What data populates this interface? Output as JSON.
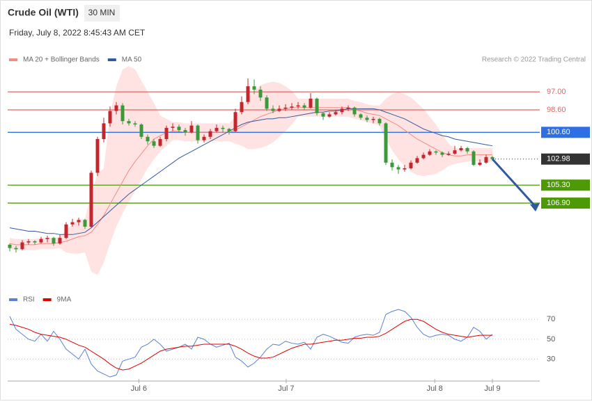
{
  "header": {
    "title": "Crude Oil (WTI)",
    "interval": "30 MIN",
    "timestamp": "Friday, July 8, 2022 8:45:43 AM CET",
    "credit": "Research © 2022 Trading Central"
  },
  "chart_data": [
    {
      "type": "candlestick",
      "up_color": "#3a9a3a",
      "down_color": "#c3262c",
      "band_color": "#ffdcdc",
      "ylim": [
        114.2,
        94.7
      ],
      "xlim": [
        0,
        77
      ],
      "xticks": [
        {
          "value": 20.6,
          "label": "Jul 6"
        },
        {
          "value": 44.1,
          "label": "Jul 7"
        },
        {
          "value": 67.8,
          "label": "Jul 8"
        },
        {
          "value": 77,
          "label": "Jul 9"
        }
      ],
      "candles": [
        [
          110.6,
          111.2,
          110.5,
          110.9
        ],
        [
          110.9,
          111.3,
          110.7,
          111.0
        ],
        [
          111.0,
          111.1,
          110.2,
          110.4
        ],
        [
          110.4,
          110.6,
          110.1,
          110.3
        ],
        [
          110.3,
          110.6,
          110.2,
          110.4
        ],
        [
          110.4,
          110.5,
          109.9,
          110.1
        ],
        [
          110.1,
          110.4,
          109.8,
          110.0
        ],
        [
          110.0,
          110.7,
          109.9,
          110.5
        ],
        [
          110.5,
          110.6,
          109.7,
          110.0
        ],
        [
          110.0,
          110.1,
          108.6,
          108.8
        ],
        [
          108.8,
          109.0,
          108.3,
          108.6
        ],
        [
          108.6,
          108.9,
          108.2,
          108.4
        ],
        [
          108.4,
          109.2,
          108.3,
          109.0
        ],
        [
          109.0,
          109.1,
          104.0,
          104.2
        ],
        [
          104.2,
          104.5,
          101.0,
          101.2
        ],
        [
          101.2,
          101.5,
          99.3,
          99.8
        ],
        [
          99.8,
          100.1,
          98.3,
          98.7
        ],
        [
          98.7,
          99.0,
          97.9,
          98.2
        ],
        [
          98.2,
          99.9,
          98.0,
          99.6
        ],
        [
          99.6,
          100.0,
          99.4,
          99.8
        ],
        [
          99.8,
          100.1,
          99.6,
          99.9
        ],
        [
          99.9,
          101.2,
          99.8,
          101.0
        ],
        [
          101.0,
          101.7,
          100.8,
          101.4
        ],
        [
          101.4,
          102.0,
          101.2,
          101.8
        ],
        [
          101.8,
          101.9,
          101.0,
          101.2
        ],
        [
          101.2,
          101.4,
          100.0,
          100.2
        ],
        [
          100.2,
          100.5,
          99.8,
          100.1
        ],
        [
          100.1,
          100.6,
          99.9,
          100.4
        ],
        [
          100.4,
          100.9,
          100.2,
          100.6
        ],
        [
          100.6,
          100.7,
          99.6,
          100.0
        ],
        [
          100.0,
          101.6,
          99.9,
          101.3
        ],
        [
          101.3,
          101.5,
          100.8,
          101.0
        ],
        [
          101.0,
          101.2,
          100.3,
          100.5
        ],
        [
          100.5,
          100.6,
          99.9,
          100.2
        ],
        [
          100.2,
          100.6,
          100.0,
          100.3
        ],
        [
          100.3,
          100.8,
          100.2,
          100.5
        ],
        [
          100.5,
          100.6,
          98.5,
          98.8
        ],
        [
          98.8,
          99.0,
          97.4,
          97.9
        ],
        [
          97.9,
          98.1,
          95.8,
          96.5
        ],
        [
          96.5,
          97.2,
          95.9,
          96.8
        ],
        [
          96.8,
          97.8,
          96.5,
          97.5
        ],
        [
          97.5,
          98.7,
          97.3,
          98.5
        ],
        [
          98.5,
          98.9,
          98.2,
          98.7
        ],
        [
          98.7,
          98.8,
          98.2,
          98.5
        ],
        [
          98.5,
          98.7,
          98.1,
          98.4
        ],
        [
          98.4,
          98.6,
          98.0,
          98.3
        ],
        [
          98.3,
          98.5,
          97.9,
          98.2
        ],
        [
          98.2,
          98.6,
          98.0,
          98.4
        ],
        [
          98.4,
          98.5,
          97.1,
          97.6
        ],
        [
          97.6,
          99.1,
          97.5,
          98.9
        ],
        [
          98.9,
          99.5,
          98.8,
          99.2
        ],
        [
          99.2,
          99.3,
          98.8,
          99.0
        ],
        [
          99.0,
          99.1,
          98.6,
          98.8
        ],
        [
          98.8,
          99.0,
          98.3,
          98.5
        ],
        [
          98.5,
          98.7,
          98.2,
          98.4
        ],
        [
          98.4,
          99.2,
          98.3,
          99.0
        ],
        [
          99.0,
          99.5,
          98.9,
          99.3
        ],
        [
          99.3,
          99.7,
          99.1,
          99.5
        ],
        [
          99.5,
          99.8,
          99.2,
          99.4
        ],
        [
          99.4,
          100.0,
          99.3,
          99.8
        ],
        [
          99.8,
          103.5,
          99.7,
          103.3
        ],
        [
          103.3,
          104.0,
          103.0,
          103.7
        ],
        [
          103.7,
          104.3,
          103.5,
          103.9
        ],
        [
          103.9,
          104.1,
          103.5,
          103.8
        ],
        [
          103.8,
          103.9,
          103.1,
          103.3
        ],
        [
          103.3,
          103.4,
          102.7,
          102.9
        ],
        [
          102.9,
          103.0,
          102.4,
          102.6
        ],
        [
          102.6,
          102.7,
          102.1,
          102.3
        ],
        [
          102.3,
          102.6,
          102.2,
          102.4
        ],
        [
          102.4,
          102.8,
          102.3,
          102.6
        ],
        [
          102.6,
          102.7,
          102.3,
          102.5
        ],
        [
          102.5,
          102.6,
          101.8,
          102.2
        ],
        [
          102.2,
          102.3,
          101.8,
          102.0
        ],
        [
          102.0,
          102.5,
          101.9,
          102.3
        ],
        [
          102.3,
          103.6,
          102.2,
          103.5
        ],
        [
          103.5,
          103.6,
          103.0,
          103.3
        ],
        [
          103.3,
          103.4,
          102.6,
          102.8
        ],
        [
          102.8,
          103.1,
          102.7,
          102.98
        ]
      ],
      "series": [
        {
          "name": "MA 20 + Bollinger Bands",
          "color": "#f28b82",
          "values": [
            110.5,
            110.6,
            110.6,
            110.6,
            110.6,
            110.5,
            110.5,
            110.5,
            110.4,
            110.3,
            110.1,
            109.9,
            109.8,
            109.5,
            108.8,
            108.0,
            107.0,
            106.0,
            105.0,
            104.0,
            103.2,
            102.5,
            101.8,
            101.2,
            100.9,
            100.6,
            100.5,
            100.5,
            100.6,
            100.6,
            100.6,
            100.6,
            100.6,
            100.6,
            100.6,
            100.6,
            100.4,
            100.1,
            99.8,
            99.5,
            99.2,
            99.0,
            98.8,
            98.6,
            98.5,
            98.4,
            98.4,
            98.4,
            98.4,
            98.4,
            98.4,
            98.4,
            98.4,
            98.4,
            98.4,
            98.6,
            98.7,
            98.9,
            99.0,
            99.1,
            99.4,
            99.7,
            100.0,
            100.4,
            100.8,
            101.2,
            101.5,
            101.8,
            102.1,
            102.4,
            102.6,
            102.7,
            102.7,
            102.6,
            102.6,
            102.6,
            102.6,
            102.6
          ],
          "upper": [
            111.0,
            111.1,
            111.1,
            111.1,
            111.1,
            111.0,
            111.0,
            111.0,
            110.9,
            111.3,
            111.4,
            111.4,
            111.3,
            113.0,
            113.3,
            112.2,
            110.5,
            109.0,
            107.8,
            106.8,
            105.8,
            104.8,
            103.8,
            103.0,
            102.3,
            101.8,
            101.3,
            101.3,
            101.4,
            101.4,
            101.4,
            101.4,
            101.4,
            101.4,
            101.4,
            101.4,
            101.6,
            101.8,
            102.1,
            102.1,
            102.0,
            101.8,
            101.5,
            101.0,
            100.5,
            99.9,
            99.2,
            99.2,
            99.2,
            99.2,
            99.2,
            99.2,
            99.2,
            99.2,
            99.2,
            99.4,
            99.5,
            99.7,
            99.8,
            100.0,
            101.2,
            102.2,
            103.0,
            103.6,
            104.1,
            104.4,
            104.5,
            104.4,
            104.3,
            104.0,
            103.6,
            103.4,
            103.3,
            103.2,
            103.2,
            103.2,
            103.2,
            103.2
          ],
          "lower": [
            110.0,
            110.1,
            110.1,
            110.1,
            110.1,
            110.0,
            110.0,
            110.0,
            109.9,
            109.3,
            108.8,
            108.4,
            108.3,
            106.0,
            104.3,
            103.8,
            99.0,
            96.5,
            95.0,
            94.7,
            95.0,
            96.0,
            97.0,
            98.0,
            99.1,
            99.4,
            99.7,
            99.7,
            99.8,
            99.8,
            99.8,
            99.8,
            99.8,
            99.8,
            99.8,
            99.8,
            99.2,
            98.4,
            97.5,
            96.9,
            96.4,
            96.2,
            96.1,
            96.2,
            96.5,
            96.9,
            97.6,
            97.6,
            97.6,
            97.6,
            97.6,
            97.6,
            97.6,
            97.6,
            97.6,
            97.8,
            97.9,
            98.1,
            98.2,
            98.2,
            97.6,
            97.2,
            97.0,
            97.2,
            97.5,
            98.0,
            98.5,
            99.2,
            99.9,
            100.8,
            101.6,
            102.0,
            102.1,
            102.0,
            102.0,
            102.0,
            102.0,
            102.0
          ]
        },
        {
          "name": "MA 50",
          "color": "#2f5a9e",
          "values": [
            109.1,
            109.2,
            109.3,
            109.4,
            109.4,
            109.5,
            109.6,
            109.6,
            109.7,
            109.7,
            109.7,
            109.6,
            109.5,
            109.1,
            108.6,
            108.1,
            107.6,
            107.1,
            106.6,
            106.1,
            105.7,
            105.3,
            104.9,
            104.5,
            104.1,
            103.7,
            103.3,
            102.9,
            102.6,
            102.3,
            102.0,
            101.7,
            101.4,
            101.1,
            100.8,
            100.5,
            100.2,
            99.9,
            99.7,
            99.6,
            99.5,
            99.4,
            99.4,
            99.3,
            99.3,
            99.2,
            99.1,
            99.0,
            98.9,
            98.8,
            98.8,
            98.7,
            98.7,
            98.6,
            98.5,
            98.5,
            98.5,
            98.5,
            98.5,
            98.6,
            98.8,
            99.0,
            99.2,
            99.4,
            99.7,
            100.0,
            100.3,
            100.5,
            100.7,
            100.9,
            101.0,
            101.2,
            101.3,
            101.4,
            101.5,
            101.6,
            101.7,
            101.8
          ]
        }
      ],
      "levels": [
        {
          "value": 106.9,
          "label": "106.90",
          "color": "#4e9a06",
          "style": "solid",
          "badge": true
        },
        {
          "value": 105.3,
          "label": "105.30",
          "color": "#4e9a06",
          "style": "solid",
          "badge": true
        },
        {
          "value": 102.98,
          "label": "102.98",
          "color": "#333333",
          "style": "dotted",
          "badge": true
        },
        {
          "value": 100.6,
          "label": "100.60",
          "color": "#2f6fe6",
          "style": "solid",
          "badge": true
        },
        {
          "value": 98.6,
          "label": "98.60",
          "color": "#e06666",
          "style": "solid",
          "badge": false
        },
        {
          "value": 97.0,
          "label": "97.00",
          "color": "#e06666",
          "style": "solid",
          "badge": false
        }
      ]
    },
    {
      "type": "line",
      "ylim": [
        10,
        80
      ],
      "yticks": [
        70,
        50,
        30
      ],
      "xlim": [
        0,
        77
      ],
      "grid": true,
      "series": [
        {
          "name": "RSI",
          "color": "#5b7fd6",
          "values": [
            73,
            60,
            55,
            50,
            48,
            55,
            48,
            58,
            50,
            40,
            35,
            30,
            40,
            25,
            18,
            15,
            12,
            14,
            28,
            30,
            32,
            42,
            45,
            50,
            45,
            38,
            40,
            42,
            45,
            40,
            52,
            50,
            45,
            42,
            44,
            46,
            32,
            28,
            22,
            26,
            32,
            40,
            45,
            44,
            48,
            46,
            45,
            47,
            40,
            52,
            55,
            53,
            50,
            47,
            46,
            52,
            54,
            55,
            54,
            57,
            75,
            78,
            80,
            78,
            72,
            62,
            55,
            52,
            54,
            55,
            54,
            50,
            48,
            52,
            62,
            58,
            50,
            55
          ]
        },
        {
          "name": "9MA",
          "color": "#e00000",
          "values": [
            65,
            64,
            62,
            60,
            57,
            55,
            54,
            53,
            52,
            50,
            47,
            44,
            42,
            38,
            34,
            30,
            25,
            21,
            19,
            20,
            23,
            26,
            30,
            34,
            38,
            40,
            41,
            42,
            43,
            43,
            44,
            45,
            45,
            45,
            45,
            45,
            43,
            40,
            36,
            33,
            31,
            31,
            32,
            35,
            38,
            41,
            43,
            45,
            45,
            46,
            47,
            48,
            49,
            49,
            50,
            51,
            51,
            52,
            52,
            53,
            56,
            60,
            64,
            68,
            70,
            70,
            68,
            64,
            60,
            57,
            55,
            54,
            53,
            52,
            53,
            54,
            54,
            54
          ]
        }
      ]
    }
  ]
}
